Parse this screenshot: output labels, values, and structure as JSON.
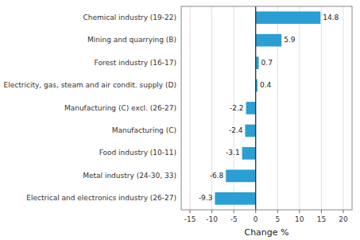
{
  "chart_data": {
    "type": "bar",
    "orientation": "horizontal",
    "categories": [
      "Electrical and electronics industry (26-27)",
      "Metal industry (24-30, 33)",
      "Food industry (10-11)",
      "Manufacturing (C)",
      "Manufacturing (C) excl. (26-27)",
      "Electricity, gas, steam and air condit. supply (D)",
      "Forest industry (16-17)",
      "Mining and quarrying (B)",
      "Chemical industry (19-22)"
    ],
    "values": [
      -9.3,
      -6.8,
      -3.1,
      -2.4,
      -2.2,
      0.4,
      0.7,
      5.9,
      14.8
    ],
    "color": "#2b9fd4",
    "xlabel": "Change %",
    "xlim": [
      -17,
      22
    ],
    "xticks": [
      -15,
      -10,
      -5,
      0,
      5,
      10,
      15,
      20
    ],
    "grid": true,
    "data_labels": true
  }
}
